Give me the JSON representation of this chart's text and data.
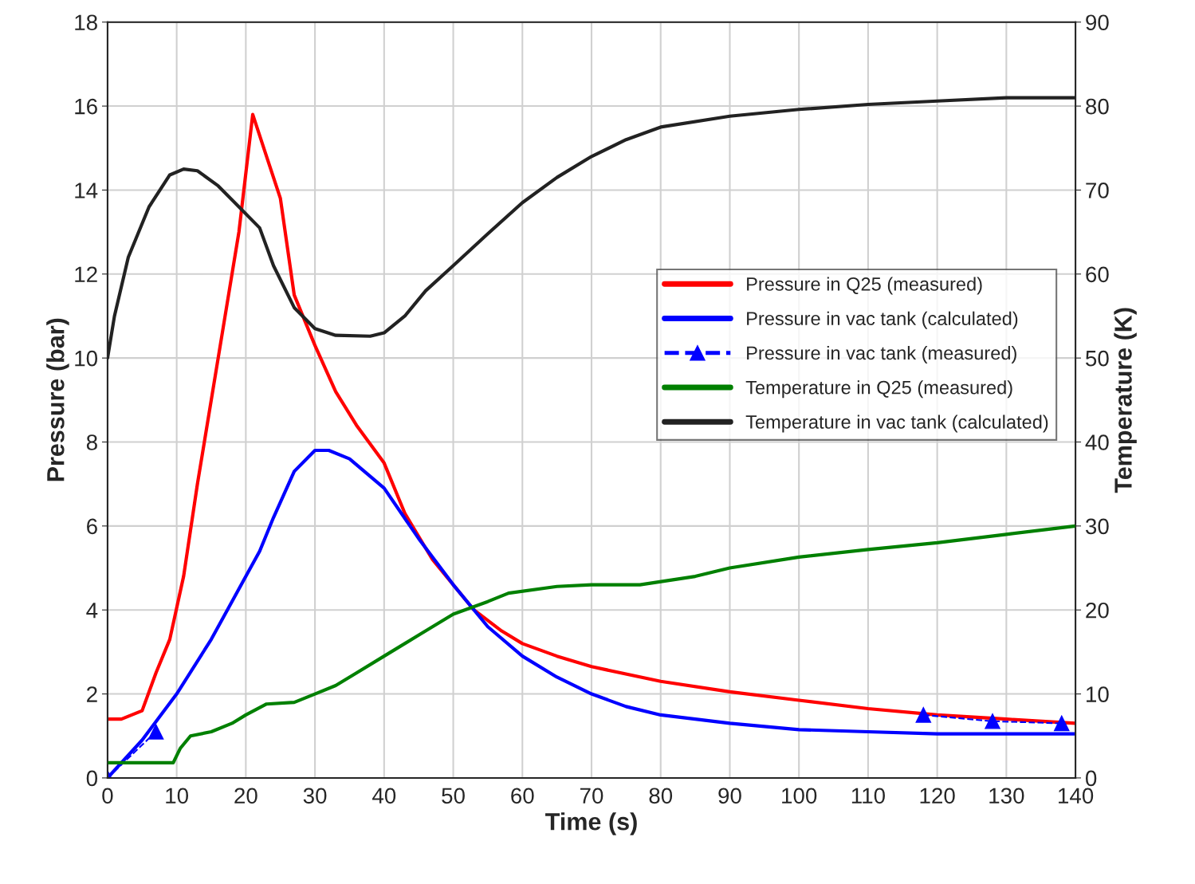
{
  "chart_data": {
    "type": "line",
    "xlabel": "Time (s)",
    "ylabel": "Pressure (bar)",
    "y2label": "Temperature (K)",
    "xlim": [
      0,
      140
    ],
    "xticks": [
      0,
      10,
      20,
      30,
      40,
      50,
      60,
      70,
      80,
      90,
      100,
      110,
      120,
      130,
      140
    ],
    "ylim": [
      0,
      18
    ],
    "yticks": [
      0,
      2,
      4,
      6,
      8,
      10,
      12,
      14,
      16,
      18
    ],
    "y2lim": [
      0,
      90
    ],
    "y2ticks": [
      0,
      10,
      20,
      30,
      40,
      50,
      60,
      70,
      80,
      90
    ],
    "grid": true,
    "legend": "right",
    "series": [
      {
        "name": "Pressure in Q25 (measured)",
        "color": "#ff0000",
        "x": [
          0,
          2,
          5,
          7,
          9,
          11,
          13,
          15,
          17,
          19,
          21,
          23,
          25,
          27,
          30,
          33,
          36,
          40,
          43,
          47,
          50,
          53,
          57,
          60,
          65,
          70,
          80,
          90,
          100,
          110,
          120,
          130,
          140
        ],
        "values": [
          1.4,
          1.4,
          1.6,
          2.5,
          3.3,
          4.8,
          7.0,
          9.0,
          11.0,
          13.0,
          15.8,
          14.8,
          13.8,
          11.5,
          10.3,
          9.2,
          8.4,
          7.5,
          6.3,
          5.2,
          4.6,
          4.0,
          3.5,
          3.2,
          2.9,
          2.65,
          2.3,
          2.05,
          1.85,
          1.65,
          1.5,
          1.4,
          1.3
        ]
      },
      {
        "name": "Pressure in vac tank (calculated)",
        "color": "#0000ff",
        "x": [
          0,
          5,
          10,
          15,
          20,
          22,
          24,
          27,
          30,
          32,
          35,
          40,
          45,
          50,
          55,
          60,
          65,
          70,
          75,
          80,
          90,
          100,
          110,
          120,
          140
        ],
        "values": [
          0,
          0.9,
          2.0,
          3.3,
          4.8,
          5.4,
          6.2,
          7.3,
          7.8,
          7.8,
          7.6,
          6.9,
          5.7,
          4.6,
          3.6,
          2.9,
          2.4,
          2.0,
          1.7,
          1.5,
          1.3,
          1.15,
          1.1,
          1.05,
          1.05
        ]
      },
      {
        "name": "Pressure in vac tank (measured)",
        "color": "#0000ff",
        "line_style": "dashed",
        "marker": "triangle",
        "x": [
          0,
          7,
          60,
          118,
          128,
          138
        ],
        "values": [
          0,
          1.1,
          null,
          1.5,
          1.35,
          1.3
        ]
      },
      {
        "name": "Temperature in Q25 (measured)",
        "color": "#008000",
        "axis": "y2",
        "x": [
          0,
          9.5,
          10.5,
          12,
          15,
          18,
          20,
          23,
          27,
          30,
          33,
          36,
          40,
          45,
          50,
          55,
          58,
          65,
          70,
          77,
          85,
          90,
          100,
          110,
          120,
          130,
          140
        ],
        "values": [
          1.8,
          1.8,
          3.5,
          5.0,
          5.5,
          6.5,
          7.5,
          8.8,
          9.0,
          10.0,
          11.0,
          12.5,
          14.5,
          17.0,
          19.5,
          21.0,
          22.0,
          22.8,
          23.0,
          23.0,
          24.0,
          25.0,
          26.3,
          27.2,
          28.0,
          29.0,
          30.0
        ]
      },
      {
        "name": "Temperature in vac tank (calculated)",
        "color": "#222222",
        "axis": "y2",
        "x": [
          0,
          1,
          3,
          6,
          9,
          11,
          13,
          16,
          19,
          22,
          24,
          27,
          30,
          33,
          38,
          40,
          43,
          46,
          50,
          55,
          60,
          65,
          70,
          75,
          80,
          90,
          100,
          110,
          120,
          130,
          140
        ],
        "values": [
          50,
          55,
          62,
          68,
          71.8,
          72.5,
          72.3,
          70.5,
          68,
          65.5,
          61,
          56,
          53.5,
          52.7,
          52.6,
          53,
          55,
          58,
          61,
          64.8,
          68.5,
          71.5,
          74,
          76,
          77.5,
          78.8,
          79.6,
          80.2,
          80.6,
          81,
          81
        ]
      }
    ]
  }
}
